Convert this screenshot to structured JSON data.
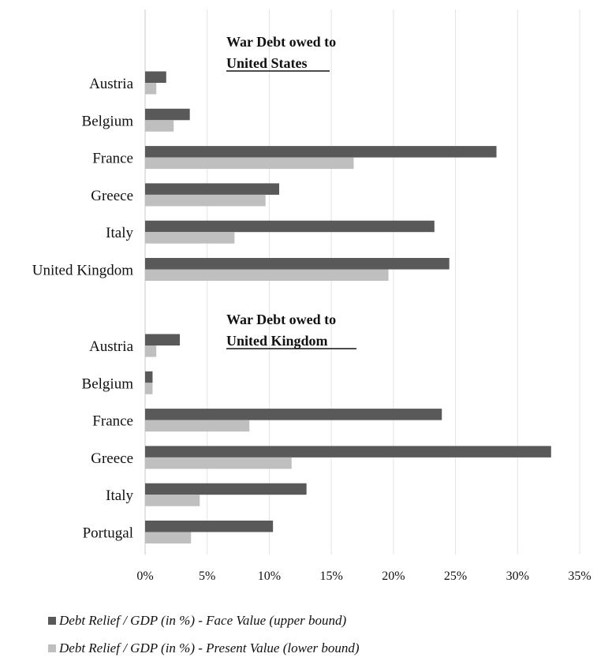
{
  "chart_data": {
    "type": "bar",
    "orientation": "horizontal",
    "xlim": [
      0,
      35
    ],
    "x_ticks": [
      0,
      5,
      10,
      15,
      20,
      25,
      30,
      35
    ],
    "x_tick_labels": [
      "0%",
      "5%",
      "10%",
      "15%",
      "20%",
      "25%",
      "30%",
      "35%"
    ],
    "grid": "vertical",
    "legend_position": "bottom-left",
    "series": [
      {
        "name": "Debt Relief / GDP (in %) - Face Value (upper bound)",
        "color": "#595959"
      },
      {
        "name": "Debt Relief / GDP (in %) - Present Value (lower bound)",
        "color": "#bfbfbf"
      }
    ],
    "groups": [
      {
        "title_line1": "War Debt owed to",
        "title_line2": "United States",
        "categories": [
          "Austria",
          "Belgium",
          "France",
          "Greece",
          "Italy",
          "United Kingdom"
        ],
        "face_value": [
          1.7,
          3.6,
          28.3,
          10.8,
          23.3,
          24.5
        ],
        "present_value": [
          0.9,
          2.3,
          16.8,
          9.7,
          7.2,
          19.6
        ]
      },
      {
        "title_line1": "War Debt owed to",
        "title_line2": "United Kingdom",
        "categories": [
          "Austria",
          "Belgium",
          "France",
          "Greece",
          "Italy",
          "Portugal"
        ],
        "face_value": [
          2.8,
          0.6,
          23.9,
          32.7,
          13.0,
          10.3
        ],
        "present_value": [
          0.9,
          0.6,
          8.4,
          11.8,
          4.4,
          3.7
        ]
      }
    ]
  }
}
